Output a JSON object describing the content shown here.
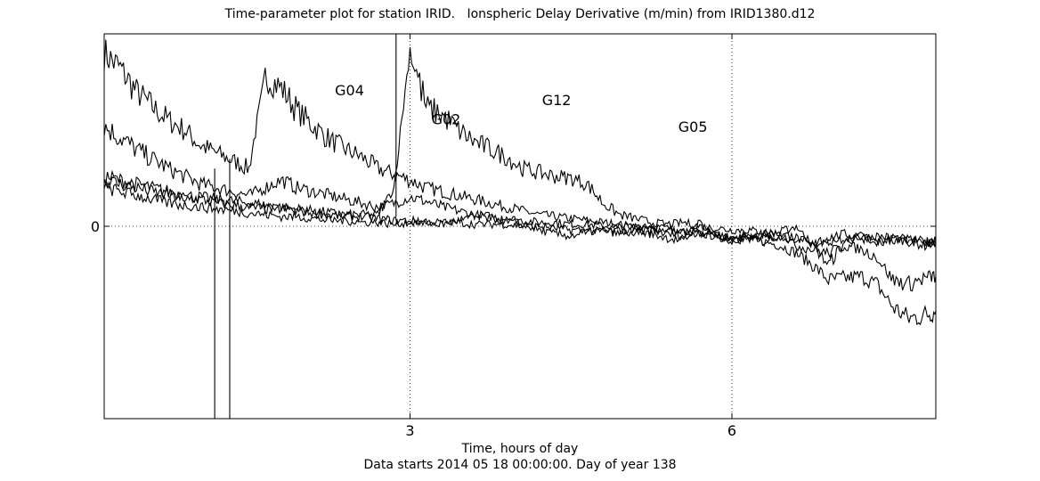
{
  "chart_data": {
    "type": "line",
    "title": "Time-parameter plot for station IRID.   Ionspheric Delay Derivative (m/min) from IRID1380.d12",
    "xlabel": "Time, hours of day",
    "xlabel_line2": "Data starts 2014 05 18 00:00:00.  Day of year 138",
    "ylabel": "",
    "xlim": [
      0.15,
      7.9
    ],
    "ylim": [
      -1.0,
      1.0
    ],
    "x_ticks": [
      3,
      6
    ],
    "x_tick_labels": [
      "3",
      "6"
    ],
    "y_ticks": [
      0
    ],
    "y_tick_labels": [
      "0"
    ],
    "grid": "dotted at ticks",
    "series": [
      {
        "name": "G04",
        "label_pos": [
          2.3,
          0.68
        ],
        "x": [
          0.15,
          0.3,
          0.45,
          0.6,
          0.75,
          0.9,
          1.05,
          1.2,
          1.35,
          1.5,
          1.65,
          1.8,
          1.95,
          2.1,
          2.25,
          2.4,
          2.55,
          2.7,
          2.85,
          3.0,
          3.15,
          3.3,
          3.45,
          3.6,
          3.75,
          3.9,
          4.05,
          4.2,
          4.35,
          4.5,
          4.65,
          4.8,
          4.95,
          5.1,
          5.25,
          5.4,
          5.55,
          5.7,
          5.85,
          6.0,
          6.15,
          6.3,
          6.45,
          6.6,
          6.75,
          6.9,
          7.05,
          7.2,
          7.35,
          7.5,
          7.65,
          7.8,
          7.9
        ],
        "y": [
          0.9,
          0.82,
          0.7,
          0.62,
          0.55,
          0.5,
          0.42,
          0.38,
          0.34,
          0.3,
          0.78,
          0.72,
          0.6,
          0.52,
          0.45,
          0.4,
          0.36,
          0.3,
          0.27,
          0.24,
          0.2,
          0.18,
          0.16,
          0.14,
          0.12,
          0.1,
          0.08,
          0.06,
          0.05,
          0.04,
          0.03,
          0.02,
          0.01,
          0.0,
          -0.01,
          -0.02,
          -0.03,
          -0.04,
          -0.05,
          -0.06,
          -0.07,
          -0.08,
          -0.1,
          -0.14,
          -0.2,
          -0.28,
          -0.27,
          -0.26,
          -0.3,
          -0.42,
          -0.48,
          -0.46,
          -0.44
        ]
      },
      {
        "name": "G02",
        "label_pos": [
          3.2,
          0.53
        ],
        "x": [
          0.15,
          0.3,
          0.45,
          0.6,
          0.75,
          0.9,
          1.05,
          1.2,
          1.35,
          1.5,
          1.65,
          1.8,
          1.95,
          2.1,
          2.25,
          2.4,
          2.55,
          2.7,
          2.85,
          3.0,
          3.15,
          3.3,
          3.45,
          3.6,
          3.75,
          3.9,
          4.05,
          4.2,
          4.35,
          4.5,
          4.65,
          4.8,
          4.95,
          5.1,
          5.25,
          5.4,
          5.55,
          5.7,
          5.85,
          6.0,
          6.15,
          6.3,
          6.45,
          6.6,
          6.75,
          6.9,
          7.05,
          7.2,
          7.35,
          7.5,
          7.65,
          7.8,
          7.9
        ],
        "y": [
          0.52,
          0.46,
          0.4,
          0.35,
          0.3,
          0.26,
          0.22,
          0.2,
          0.18,
          0.16,
          0.2,
          0.24,
          0.2,
          0.18,
          0.16,
          0.14,
          0.12,
          0.1,
          0.12,
          0.15,
          0.13,
          0.1,
          0.08,
          0.06,
          0.05,
          0.04,
          0.03,
          0.02,
          0.02,
          0.01,
          0.01,
          0.0,
          0.0,
          0.0,
          0.0,
          -0.01,
          -0.02,
          -0.03,
          -0.05,
          -0.07,
          -0.05,
          -0.04,
          -0.03,
          0.0,
          -0.1,
          -0.2,
          -0.08,
          -0.05,
          -0.08,
          -0.06,
          -0.08,
          -0.1,
          -0.08
        ]
      },
      {
        "name": "G12",
        "label_pos": [
          4.23,
          0.63
        ],
        "x": [
          0.15,
          0.3,
          0.45,
          0.6,
          0.75,
          0.9,
          1.05,
          1.2,
          1.35,
          1.5,
          1.65,
          1.8,
          1.95,
          2.1,
          2.25,
          2.4,
          2.55,
          2.7,
          2.85,
          3.0,
          3.15,
          3.3,
          3.45,
          3.6,
          3.75,
          3.9,
          4.05,
          4.2,
          4.35,
          4.5,
          4.65,
          4.8,
          4.95,
          5.1,
          5.25,
          5.4,
          5.55,
          5.7,
          5.85,
          6.0,
          6.15,
          6.3,
          6.45,
          6.6,
          6.75,
          6.9,
          7.05,
          7.2,
          7.35,
          7.5,
          7.65,
          7.8,
          7.9
        ],
        "y": [
          0.26,
          0.24,
          0.22,
          0.2,
          0.18,
          0.16,
          0.15,
          0.14,
          0.13,
          0.12,
          0.11,
          0.1,
          0.09,
          0.08,
          0.07,
          0.06,
          0.06,
          0.06,
          0.2,
          0.92,
          0.62,
          0.58,
          0.5,
          0.44,
          0.4,
          0.36,
          0.3,
          0.28,
          0.26,
          0.25,
          0.22,
          0.12,
          0.06,
          0.04,
          0.02,
          0.01,
          0.02,
          0.0,
          -0.01,
          -0.02,
          -0.02,
          -0.03,
          -0.04,
          -0.06,
          -0.1,
          -0.06,
          -0.04,
          -0.06,
          -0.05,
          -0.06,
          -0.07,
          -0.08,
          -0.08
        ]
      },
      {
        "name": "G05",
        "label_pos": [
          5.5,
          0.49
        ],
        "x": [
          0.15,
          0.3,
          0.45,
          0.6,
          0.75,
          0.9,
          1.05,
          1.2,
          1.35,
          1.5,
          1.65,
          1.8,
          1.95,
          2.1,
          2.25,
          2.4,
          2.55,
          2.7,
          2.85,
          3.0,
          3.15,
          3.3,
          3.45,
          3.6,
          3.75,
          3.9,
          4.05,
          4.2,
          4.35,
          4.5,
          4.65,
          4.8,
          4.95,
          5.1,
          5.25,
          5.4,
          5.55,
          5.7,
          5.85,
          6.0,
          6.15,
          6.3,
          6.45,
          6.6,
          6.75,
          6.9,
          7.05,
          7.2,
          7.35,
          7.5,
          7.65,
          7.8,
          7.9
        ],
        "y": [
          0.24,
          0.22,
          0.2,
          0.18,
          0.16,
          0.15,
          0.14,
          0.12,
          0.11,
          0.1,
          0.09,
          0.09,
          0.08,
          0.07,
          0.06,
          0.05,
          0.05,
          0.04,
          0.03,
          0.03,
          0.02,
          0.02,
          0.02,
          0.01,
          0.01,
          0.01,
          0.0,
          0.0,
          -0.01,
          -0.02,
          -0.02,
          -0.03,
          -0.02,
          -0.03,
          -0.04,
          -0.06,
          -0.08,
          0.02,
          -0.05,
          -0.08,
          -0.06,
          -0.08,
          -0.04,
          -0.1,
          -0.12,
          -0.14,
          -0.1,
          -0.12,
          -0.16,
          -0.28,
          -0.3,
          -0.27,
          -0.26
        ]
      },
      {
        "name": "",
        "label_pos": null,
        "x": [
          0.15,
          0.3,
          0.45,
          0.6,
          0.75,
          0.9,
          1.05,
          1.2,
          1.35,
          1.5,
          1.65,
          1.8,
          1.95,
          2.1,
          2.25,
          2.4,
          2.55,
          2.7,
          2.85,
          3.0,
          3.15,
          3.3,
          3.45,
          3.6,
          3.75,
          3.9,
          4.05,
          4.2,
          4.35,
          4.5,
          4.65,
          4.8,
          4.95,
          5.1,
          5.25,
          5.4,
          5.55,
          5.7,
          5.85,
          6.0,
          6.15,
          6.3,
          6.45,
          6.6,
          6.75,
          6.9,
          7.05,
          7.2,
          7.35,
          7.5,
          7.65,
          7.8,
          7.9
        ],
        "y": [
          0.2,
          0.18,
          0.16,
          0.14,
          0.12,
          0.11,
          0.1,
          0.09,
          0.08,
          0.07,
          0.06,
          0.05,
          0.05,
          0.04,
          0.03,
          0.03,
          0.02,
          0.02,
          0.01,
          0.02,
          0.02,
          0.01,
          0.03,
          0.05,
          0.04,
          0.03,
          0.01,
          -0.02,
          -0.04,
          -0.05,
          -0.03,
          -0.02,
          -0.04,
          -0.03,
          -0.02,
          -0.04,
          -0.05,
          -0.03,
          -0.04,
          -0.06,
          -0.05,
          -0.06,
          -0.07,
          -0.06,
          -0.08,
          -0.08,
          -0.06,
          -0.06,
          -0.08,
          -0.07,
          -0.08,
          -0.08,
          -0.08
        ]
      }
    ]
  }
}
